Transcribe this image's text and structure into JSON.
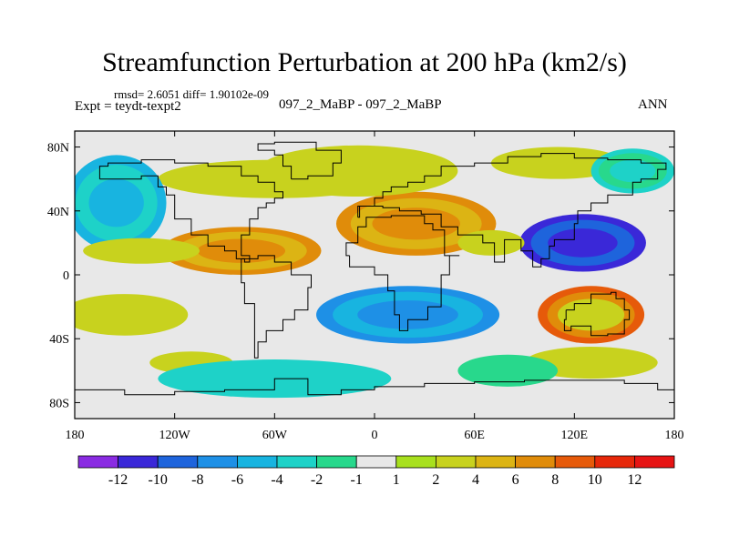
{
  "chart_data": {
    "type": "heatmap",
    "title": "Streamfunction Perturbation at 200 hPa (km2/s)",
    "left_info": "rmsd= 2.6051 diff= 1.90102e-09",
    "left_label": "Expt = teydt-texpt2",
    "center_label": "097_2_MaBP - 097_2_MaBP",
    "right_label": "ANN",
    "xlim": [
      -180,
      180
    ],
    "ylim": [
      -90,
      90
    ],
    "x_ticks": [
      {
        "value": -180,
        "label": "180"
      },
      {
        "value": -120,
        "label": "120W"
      },
      {
        "value": -60,
        "label": "60W"
      },
      {
        "value": 0,
        "label": "0"
      },
      {
        "value": 60,
        "label": "60E"
      },
      {
        "value": 120,
        "label": "120E"
      },
      {
        "value": 180,
        "label": "180"
      }
    ],
    "y_ticks": [
      {
        "value": 80,
        "label": "80N"
      },
      {
        "value": 40,
        "label": "40N"
      },
      {
        "value": 0,
        "label": "0"
      },
      {
        "value": -40,
        "label": "40S"
      },
      {
        "value": -80,
        "label": "80S"
      }
    ],
    "levels": [
      -12,
      -10,
      -8,
      -6,
      -4,
      -2,
      -1,
      1,
      2,
      4,
      6,
      8,
      10,
      12
    ],
    "level_labels": [
      "-12",
      "-10",
      "-8",
      "-6",
      "-4",
      "-2",
      "-1",
      "1",
      "2",
      "4",
      "6",
      "8",
      "10",
      "12"
    ],
    "colors": [
      "#8a2be2",
      "#3a28d8",
      "#1e64dc",
      "#1e90e6",
      "#18b4e0",
      "#1ed2c8",
      "#28d88c",
      "#e8e8e8",
      "#a8e01e",
      "#c8d21e",
      "#dcb414",
      "#e08c0a",
      "#e65a0a",
      "#e6280a",
      "#e61414"
    ],
    "features": [
      {
        "lon": 130,
        "lat": -25,
        "rlon": 32,
        "rlat": 18,
        "value": 9
      },
      {
        "lon": 130,
        "lat": -25,
        "rlon": 20,
        "rlat": 10,
        "value": 3
      },
      {
        "lon": 130,
        "lat": -55,
        "rlon": 40,
        "rlat": 10,
        "value": 3
      },
      {
        "lon": 110,
        "lat": 70,
        "rlon": 40,
        "rlat": 10,
        "value": 2
      },
      {
        "lon": 125,
        "lat": 20,
        "rlon": 38,
        "rlat": 18,
        "value": -11
      },
      {
        "lon": 155,
        "lat": 65,
        "rlon": 25,
        "rlat": 14,
        "value": -4
      },
      {
        "lon": 25,
        "lat": 32,
        "rlon": 48,
        "rlat": 20,
        "value": 6
      },
      {
        "lon": -10,
        "lat": 65,
        "rlon": 60,
        "rlat": 16,
        "value": 3
      },
      {
        "lon": -80,
        "lat": 15,
        "rlon": 48,
        "rlat": 15,
        "value": 6
      },
      {
        "lon": -60,
        "lat": 60,
        "rlon": 70,
        "rlat": 12,
        "value": 2
      },
      {
        "lon": -155,
        "lat": 45,
        "rlon": 30,
        "rlat": 30,
        "value": -5
      },
      {
        "lon": -140,
        "lat": 15,
        "rlon": 35,
        "rlat": 8,
        "value": 2
      },
      {
        "lon": -150,
        "lat": -25,
        "rlon": 38,
        "rlat": 13,
        "value": 2
      },
      {
        "lon": -110,
        "lat": -55,
        "rlon": 25,
        "rlat": 7,
        "value": 2
      },
      {
        "lon": 20,
        "lat": -25,
        "rlon": 55,
        "rlat": 18,
        "value": -7
      },
      {
        "lon": -60,
        "lat": -65,
        "rlon": 70,
        "rlat": 12,
        "value": -3
      },
      {
        "lon": 80,
        "lat": -60,
        "rlon": 30,
        "rlat": 10,
        "value": -2
      },
      {
        "lon": 70,
        "lat": 20,
        "rlon": 20,
        "rlat": 8,
        "value": 2
      }
    ]
  }
}
